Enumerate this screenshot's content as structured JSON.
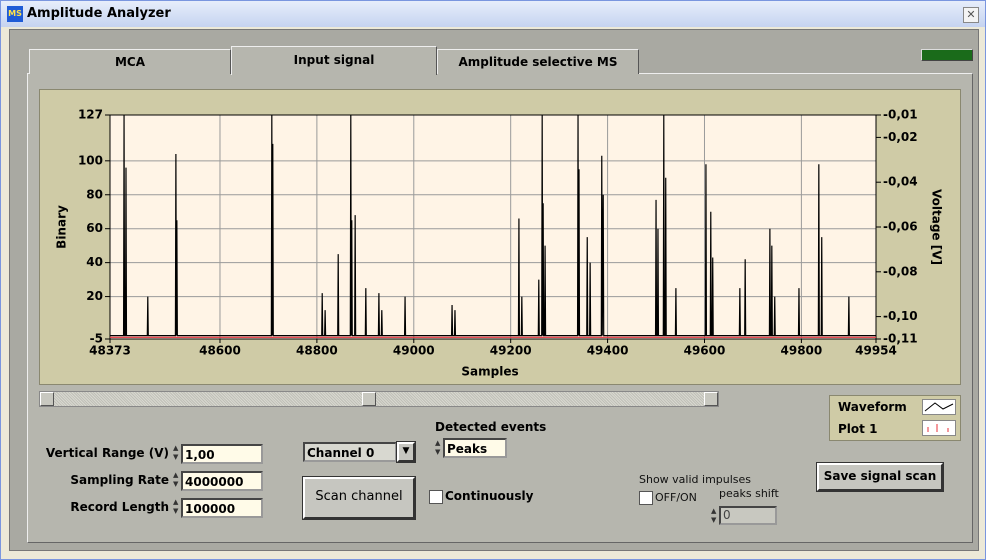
{
  "window": {
    "title": "Amplitude Analyzer"
  },
  "tabs": [
    "MCA",
    "Input signal",
    "Amplitude selective MS"
  ],
  "chart_data": {
    "type": "line",
    "xlabel": "Samples",
    "ylabel": "Binary",
    "y2label": "Voltage [V]",
    "xlim": [
      48373,
      49954
    ],
    "xticks": [
      48373,
      48600,
      48800,
      49000,
      49200,
      49400,
      49600,
      49800,
      49954
    ],
    "ylim": [
      -5,
      127
    ],
    "yticks": [
      -5,
      20,
      40,
      60,
      80,
      100,
      127
    ],
    "y2lim": [
      -0.11,
      -0.01
    ],
    "y2ticks": [
      {
        "value": -0.01,
        "label": "-0,01"
      },
      {
        "value": -0.02,
        "label": "-0,02"
      },
      {
        "value": -0.04,
        "label": "-0,04"
      },
      {
        "value": -0.06,
        "label": "-0,06"
      },
      {
        "value": -0.08,
        "label": "-0,08"
      },
      {
        "value": -0.1,
        "label": "-0,10"
      },
      {
        "value": -0.11,
        "label": "-0,11"
      }
    ],
    "grid": true,
    "series": [
      {
        "name": "Waveform",
        "color": "#000000",
        "x": [
          48373,
          48401,
          48402,
          48403,
          48405,
          48406,
          48407,
          48450,
          48451,
          48452,
          48508,
          48509,
          48510,
          48511,
          48512,
          48706,
          48707,
          48708,
          48709,
          48710,
          48810,
          48811,
          48812,
          48816,
          48817,
          48818,
          48843,
          48844,
          48845,
          48869,
          48870,
          48871,
          48872,
          48873,
          48878,
          48879,
          48880,
          48900,
          48901,
          48902,
          48927,
          48928,
          48929,
          48933,
          48934,
          48935,
          48981,
          48982,
          48983,
          49078,
          49079,
          49080,
          49084,
          49085,
          49086,
          49216,
          49217,
          49218,
          49222,
          49223,
          49224,
          49257,
          49258,
          49259,
          49264,
          49265,
          49266,
          49267,
          49268,
          49270,
          49271,
          49272,
          49338,
          49339,
          49340,
          49341,
          49342,
          49357,
          49358,
          49359,
          49363,
          49364,
          49365,
          49387,
          49388,
          49389,
          49391,
          49392,
          49499,
          49500,
          49501,
          49503,
          49504,
          49505,
          49515,
          49516,
          49517,
          49519,
          49520,
          49521,
          49540,
          49541,
          49542,
          49602,
          49603,
          49604,
          49612,
          49613,
          49614,
          49616,
          49617,
          49618,
          49672,
          49673,
          49674,
          49683,
          49684,
          49685,
          49734,
          49735,
          49736,
          49738,
          49739,
          49740,
          49744,
          49745,
          49746,
          49794,
          49795,
          49796,
          49835,
          49836,
          49837,
          49841,
          49842,
          49843,
          49897,
          49898,
          49899,
          49954
        ],
        "values": [
          -3,
          -3,
          127,
          -3,
          -3,
          96,
          -3,
          -3,
          20,
          -3,
          -3,
          104,
          -3,
          65,
          -3,
          -3,
          127,
          -3,
          110,
          -3,
          -3,
          22,
          -3,
          -3,
          12,
          -3,
          -3,
          45,
          -3,
          -3,
          127,
          -3,
          65,
          -3,
          -3,
          68,
          -3,
          -3,
          25,
          -3,
          -3,
          22,
          -3,
          -3,
          12,
          -3,
          -3,
          20,
          -3,
          -3,
          15,
          -3,
          -3,
          12,
          -3,
          -3,
          66,
          -3,
          -3,
          20,
          -3,
          -3,
          30,
          -3,
          -3,
          127,
          -3,
          75,
          -3,
          -3,
          50,
          -3,
          -3,
          127,
          -3,
          95,
          -3,
          -3,
          55,
          -3,
          -3,
          40,
          -3,
          -3,
          103,
          -3,
          80,
          -3,
          -3,
          77,
          -3,
          -3,
          60,
          -3,
          -3,
          127,
          -3,
          -3,
          90,
          -3,
          -3,
          25,
          -3,
          -3,
          98,
          -3,
          -3,
          70,
          -3,
          -3,
          43,
          -3,
          -3,
          25,
          -3,
          -3,
          42,
          -3,
          -3,
          60,
          -3,
          -3,
          50,
          -3,
          -3,
          20,
          -3,
          -3,
          25,
          -3,
          -3,
          98,
          -3,
          -3,
          55,
          -3,
          -3,
          20,
          -3,
          -3
        ]
      },
      {
        "name": "Plot 1",
        "color": "#e8303a",
        "x": [
          48373,
          48700,
          49000,
          49300,
          49600,
          49954
        ],
        "values": [
          -4,
          -4,
          -4,
          -4,
          -4,
          -4
        ]
      }
    ]
  },
  "controls": {
    "vertical_range": {
      "label": "Vertical Range (V)",
      "value": "1,00"
    },
    "sampling_rate": {
      "label": "Sampling Rate",
      "value": "4000000"
    },
    "record_length": {
      "label": "Record Length",
      "value": "100000"
    },
    "channel": "Channel 0",
    "scan_button": "Scan channel",
    "continuously": "Continuously",
    "detected_events": {
      "label": "Detected events",
      "value": "Peaks"
    },
    "show_valid_impulses": {
      "label": "Show valid impulses",
      "toggle": "OFF/ON"
    },
    "peaks_shift": {
      "label": "peaks shift",
      "value": "0"
    },
    "save_button": "Save signal scan"
  }
}
